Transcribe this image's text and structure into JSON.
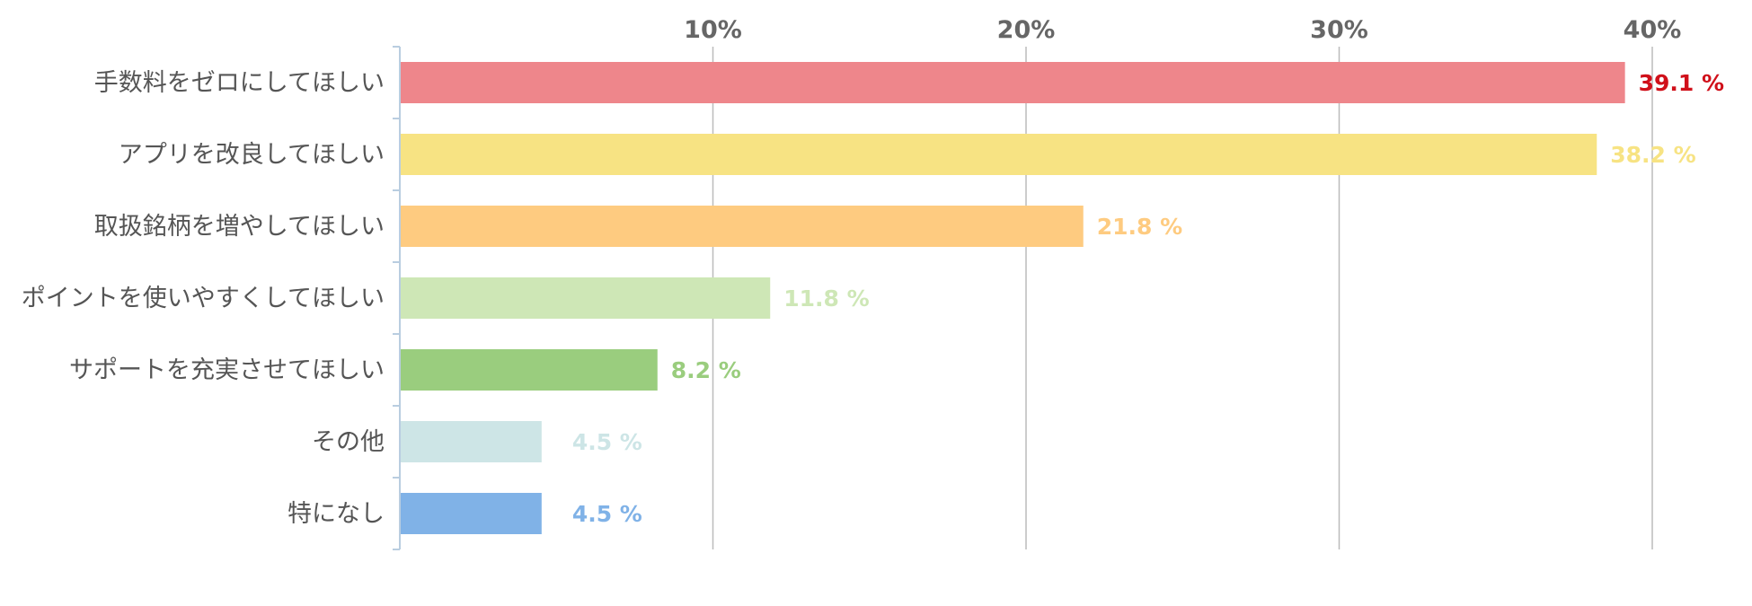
{
  "chart_data": {
    "type": "bar",
    "orientation": "horizontal",
    "title": "",
    "xlabel": "",
    "ylabel": "",
    "xlim": [
      0,
      42
    ],
    "grid": true,
    "x_ticks": [
      {
        "value": 10,
        "label": "10%"
      },
      {
        "value": 20,
        "label": "20%"
      },
      {
        "value": 30,
        "label": "30%"
      },
      {
        "value": 40,
        "label": "40%"
      }
    ],
    "categories": [
      "手数料をゼロにしてほしい",
      "アプリを改良してほしい",
      "取扱銘柄を増やしてほしい",
      "ポイントを使いやすくしてほしい",
      "サポートを充実させてほしい",
      "その他",
      "特になし"
    ],
    "values": [
      39.1,
      38.2,
      21.8,
      11.8,
      8.2,
      4.5,
      4.5
    ],
    "value_labels": [
      "39.1 %",
      "38.2 %",
      "21.8 %",
      "11.8 %",
      "8.2 %",
      "4.5 %",
      "4.5 %"
    ],
    "bar_colors": [
      "#ee868b",
      "#f7e383",
      "#fecb80",
      "#cee7b6",
      "#9acd7e",
      "#cde5e6",
      "#80b2e7"
    ],
    "label_colors": [
      "#d0101a",
      "#f7e383",
      "#fecb80",
      "#cee7b6",
      "#9acd7e",
      "#cde5e6",
      "#80b2e7"
    ]
  },
  "colors": {
    "grid": "#bbbbbb",
    "axis": "#b9cde0",
    "tick_text": "#666666",
    "category_text": "#555555"
  }
}
